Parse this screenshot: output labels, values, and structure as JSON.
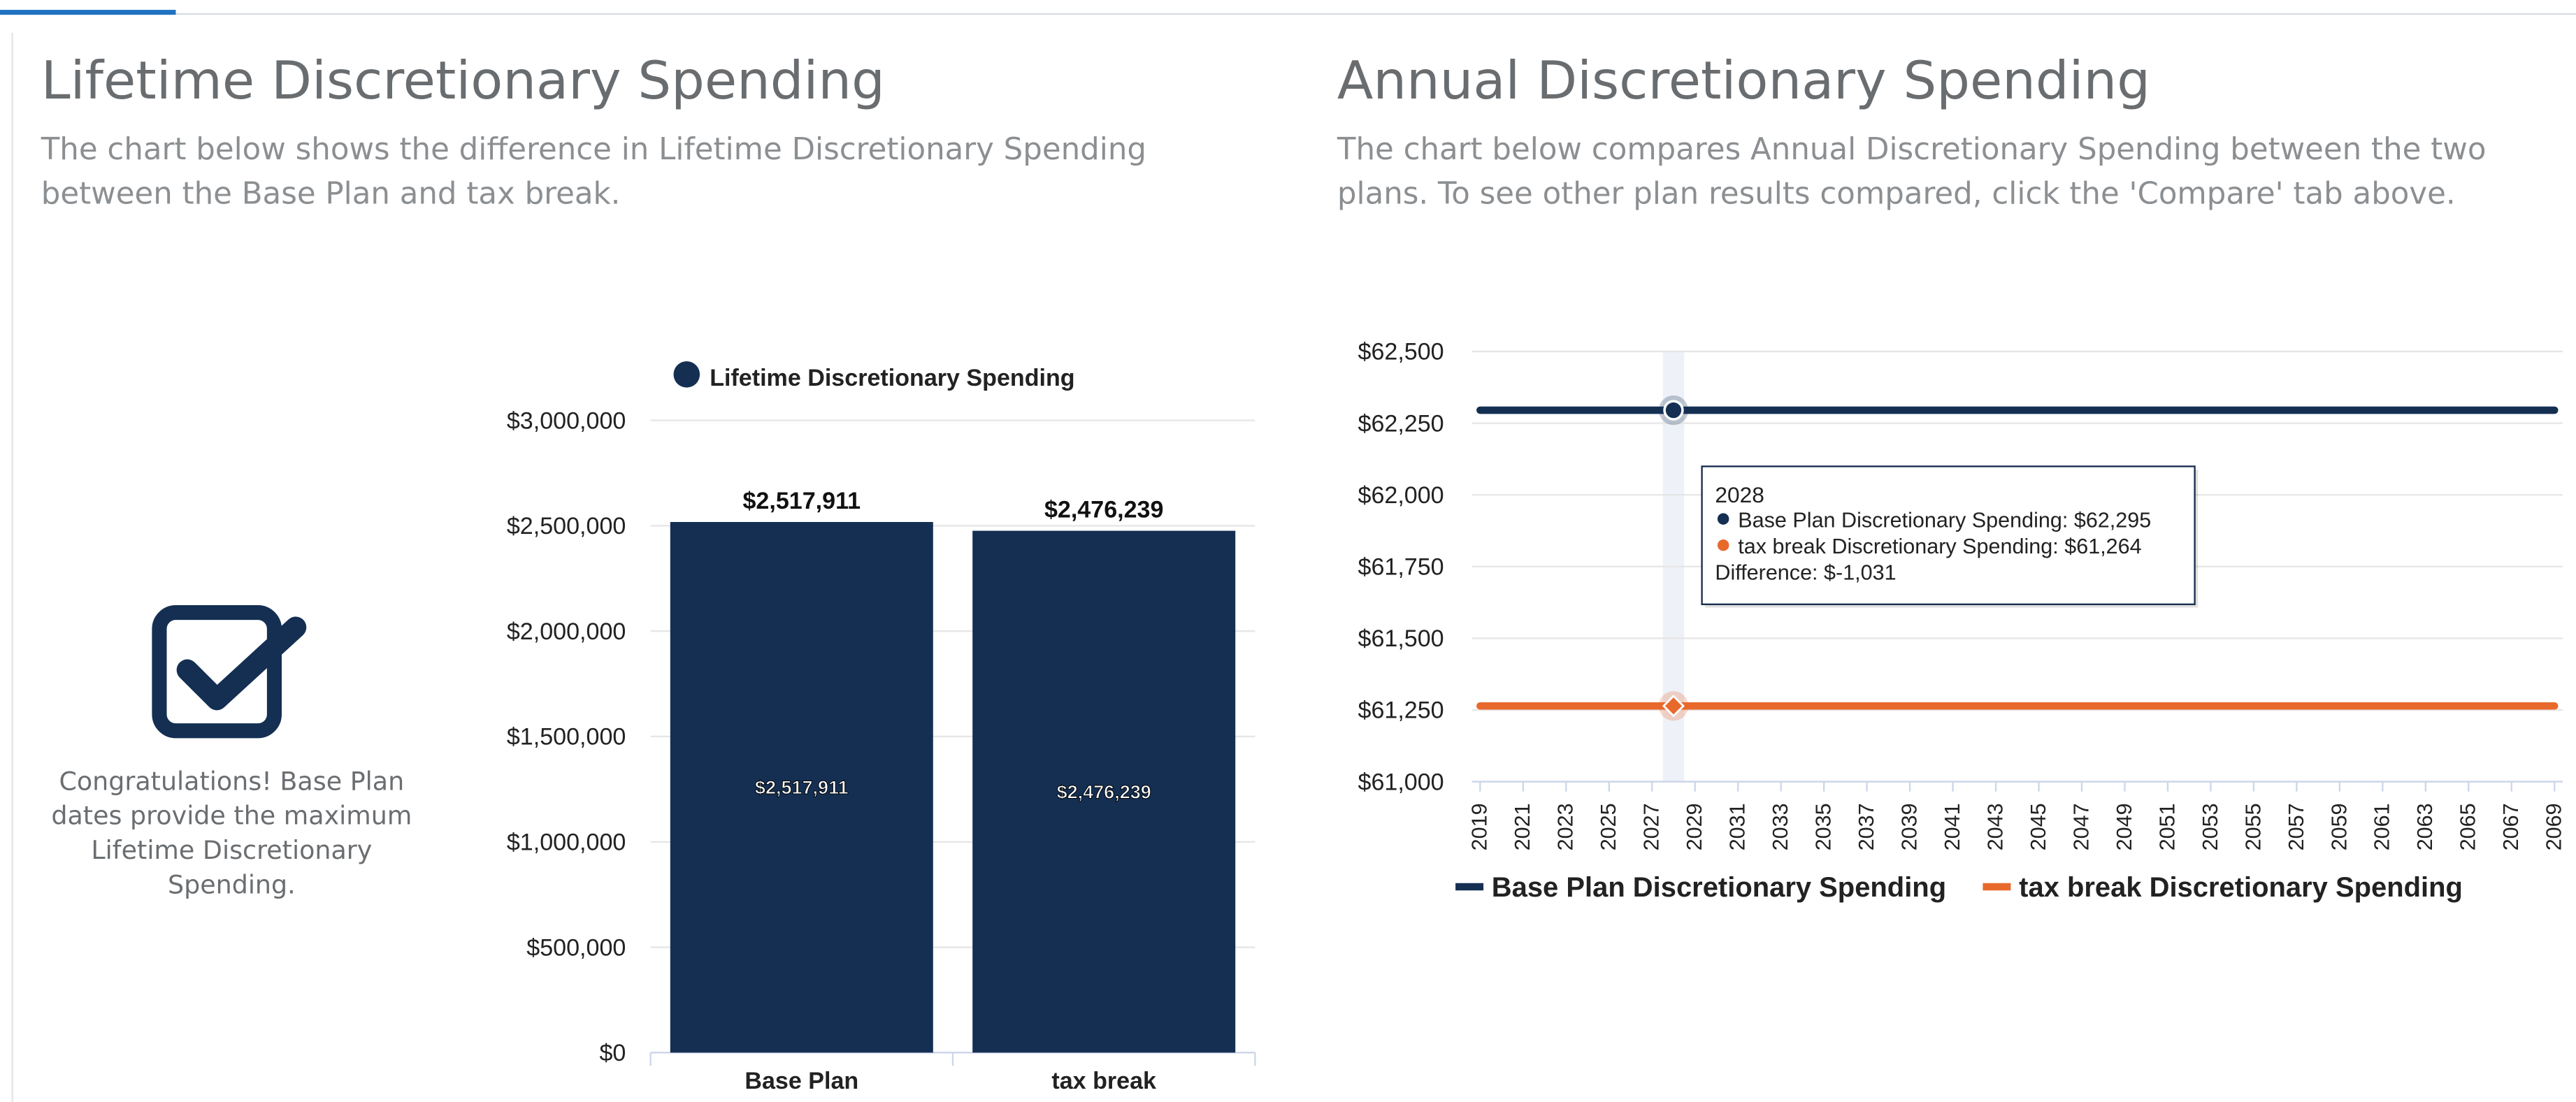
{
  "tabs": {
    "active_index": 0
  },
  "left": {
    "title": "Lifetime Discretionary Spending",
    "description": "The chart below shows the difference in Lifetime Discretionary Spending between the Base Plan and tax break.",
    "congrats": "Congratulations! Base Plan dates provide the maximum Lifetime Discretionary Spending.",
    "icon": "checkbox-checked-icon"
  },
  "right": {
    "title": "Annual Discretionary Spending",
    "description": "The chart below compares Annual Discretionary Spending between the two plans. To see other plan results compared, click the 'Compare' tab above."
  },
  "colors": {
    "navy": "#142f52",
    "orange": "#e8692c",
    "grid": "#e6e6e6",
    "heading": "#6a6d70",
    "text": "#8c8f92"
  },
  "chart_data": [
    {
      "type": "bar",
      "title": "",
      "legend": [
        "Lifetime Discretionary Spending"
      ],
      "legend_position": "top",
      "categories": [
        "Base Plan",
        "tax break"
      ],
      "values": [
        2517911,
        2476239
      ],
      "value_labels": [
        "$2,517,911",
        "$2,476,239"
      ],
      "ylim": [
        0,
        3000000
      ],
      "yticks": [
        0,
        500000,
        1000000,
        1500000,
        2000000,
        2500000,
        3000000
      ],
      "ytick_labels": [
        "$0",
        "$500,000",
        "$1,000,000",
        "$1,500,000",
        "$2,000,000",
        "$2,500,000",
        "$3,000,000"
      ],
      "xlabel": "",
      "ylabel": "",
      "grid": true
    },
    {
      "type": "line",
      "title": "",
      "x": [
        2019,
        2020,
        2021,
        2022,
        2023,
        2024,
        2025,
        2026,
        2027,
        2028,
        2029,
        2030,
        2031,
        2032,
        2033,
        2034,
        2035,
        2036,
        2037,
        2038,
        2039,
        2040,
        2041,
        2042,
        2043,
        2044,
        2045,
        2046,
        2047,
        2048,
        2049,
        2050,
        2051,
        2052,
        2053,
        2054,
        2055,
        2056,
        2057,
        2058,
        2059,
        2060,
        2061,
        2062,
        2063,
        2064,
        2065,
        2066,
        2067,
        2068,
        2069
      ],
      "xtick_labels": [
        "2019",
        "2021",
        "2023",
        "2025",
        "2027",
        "2029",
        "2031",
        "2033",
        "2035",
        "2037",
        "2039",
        "2041",
        "2043",
        "2045",
        "2047",
        "2049",
        "2051",
        "2053",
        "2055",
        "2057",
        "2059",
        "2061",
        "2063",
        "2065",
        "2067",
        "2069"
      ],
      "series": [
        {
          "name": "Base Plan Discretionary Spending",
          "constant_value": 62295,
          "color": "#142f52"
        },
        {
          "name": "tax break Discretionary Spending",
          "constant_value": 61264,
          "color": "#e8692c"
        }
      ],
      "ylim": [
        61000,
        62500
      ],
      "yticks": [
        61000,
        61250,
        61500,
        61750,
        62000,
        62250,
        62500
      ],
      "ytick_labels": [
        "$61,000",
        "$61,250",
        "$61,500",
        "$61,750",
        "$62,000",
        "$62,250",
        "$62,500"
      ],
      "legend_position": "bottom",
      "grid": true,
      "highlight_x": 2028,
      "tooltip": {
        "year": "2028",
        "line1": "Base Plan Discretionary Spending: $62,295",
        "line2": "tax break Discretionary Spending: $61,264",
        "line3": "Difference: $-1,031"
      }
    }
  ]
}
